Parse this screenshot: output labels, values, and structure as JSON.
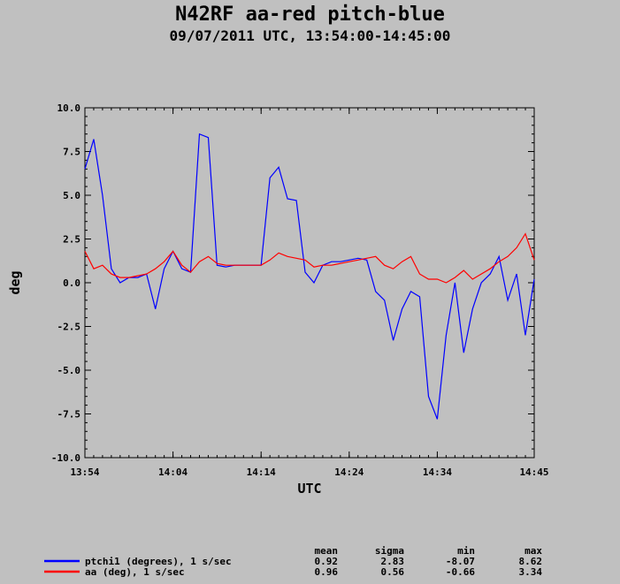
{
  "title": "N42RF aa-red pitch-blue",
  "subtitle": "09/07/2011  UTC, 13:54:00-14:45:00",
  "chart_data": {
    "type": "line",
    "xlabel": "UTC",
    "ylabel": "deg",
    "xlim": [
      "13:54",
      "14:45"
    ],
    "ylim": [
      -10,
      10
    ],
    "x_ticks": [
      "13:54",
      "14:04",
      "14:14",
      "14:24",
      "14:34",
      "14:45"
    ],
    "y_ticks": [
      "10.0",
      "7.5",
      "5.0",
      "2.5",
      "0.0",
      "-2.5",
      "-5.0",
      "-7.5",
      "-10.0"
    ],
    "grid": false,
    "stats_headers": [
      "mean",
      "sigma",
      "min",
      "max"
    ],
    "series": [
      {
        "name": "ptchi1 (degrees), 1 s/sec",
        "color": "#0000ff",
        "mean": "0.92",
        "sigma": "2.83",
        "min": "-8.07",
        "max": "8.62",
        "x": [
          "13:54",
          "13:55",
          "13:56",
          "13:57",
          "13:58",
          "13:59",
          "14:00",
          "14:01",
          "14:02",
          "14:03",
          "14:04",
          "14:05",
          "14:06",
          "14:07",
          "14:08",
          "14:09",
          "14:10",
          "14:11",
          "14:12",
          "14:13",
          "14:14",
          "14:15",
          "14:16",
          "14:17",
          "14:18",
          "14:19",
          "14:20",
          "14:21",
          "14:22",
          "14:23",
          "14:24",
          "14:25",
          "14:26",
          "14:27",
          "14:28",
          "14:29",
          "14:30",
          "14:31",
          "14:32",
          "14:33",
          "14:34",
          "14:35",
          "14:36",
          "14:37",
          "14:38",
          "14:39",
          "14:40",
          "14:41",
          "14:42",
          "14:43",
          "14:44",
          "14:45"
        ],
        "y": [
          6.5,
          8.2,
          5.0,
          0.8,
          0.0,
          0.3,
          0.3,
          0.5,
          -1.5,
          0.8,
          1.8,
          0.8,
          0.6,
          8.5,
          8.3,
          1.0,
          0.9,
          1.0,
          1.0,
          1.0,
          1.0,
          6.0,
          6.6,
          4.8,
          4.7,
          0.6,
          0.0,
          1.0,
          1.2,
          1.2,
          1.3,
          1.4,
          1.3,
          -0.5,
          -1.0,
          -3.3,
          -1.5,
          -0.5,
          -0.8,
          -6.5,
          -7.8,
          -3.0,
          0.0,
          -4.0,
          -1.5,
          0.0,
          0.5,
          1.5,
          -1.0,
          0.5,
          -3.0,
          0.2
        ]
      },
      {
        "name": "aa (deg), 1 s/sec",
        "color": "#ff0000",
        "mean": "0.96",
        "sigma": "0.56",
        "min": "-0.66",
        "max": "3.34",
        "x": [
          "13:54",
          "13:55",
          "13:56",
          "13:57",
          "13:58",
          "13:59",
          "14:00",
          "14:01",
          "14:02",
          "14:03",
          "14:04",
          "14:05",
          "14:06",
          "14:07",
          "14:08",
          "14:09",
          "14:10",
          "14:11",
          "14:12",
          "14:13",
          "14:14",
          "14:15",
          "14:16",
          "14:17",
          "14:18",
          "14:19",
          "14:20",
          "14:21",
          "14:22",
          "14:23",
          "14:24",
          "14:25",
          "14:26",
          "14:27",
          "14:28",
          "14:29",
          "14:30",
          "14:31",
          "14:32",
          "14:33",
          "14:34",
          "14:35",
          "14:36",
          "14:37",
          "14:38",
          "14:39",
          "14:40",
          "14:41",
          "14:42",
          "14:43",
          "14:44",
          "14:45"
        ],
        "y": [
          1.8,
          0.8,
          1.0,
          0.5,
          0.3,
          0.3,
          0.4,
          0.5,
          0.8,
          1.2,
          1.8,
          1.0,
          0.6,
          1.2,
          1.5,
          1.1,
          1.0,
          1.0,
          1.0,
          1.0,
          1.0,
          1.3,
          1.7,
          1.5,
          1.4,
          1.3,
          0.9,
          1.0,
          1.0,
          1.1,
          1.2,
          1.3,
          1.4,
          1.5,
          1.0,
          0.8,
          1.2,
          1.5,
          0.5,
          0.2,
          0.2,
          0.0,
          0.3,
          0.7,
          0.2,
          0.5,
          0.8,
          1.2,
          1.5,
          2.0,
          2.8,
          1.3
        ]
      }
    ]
  }
}
